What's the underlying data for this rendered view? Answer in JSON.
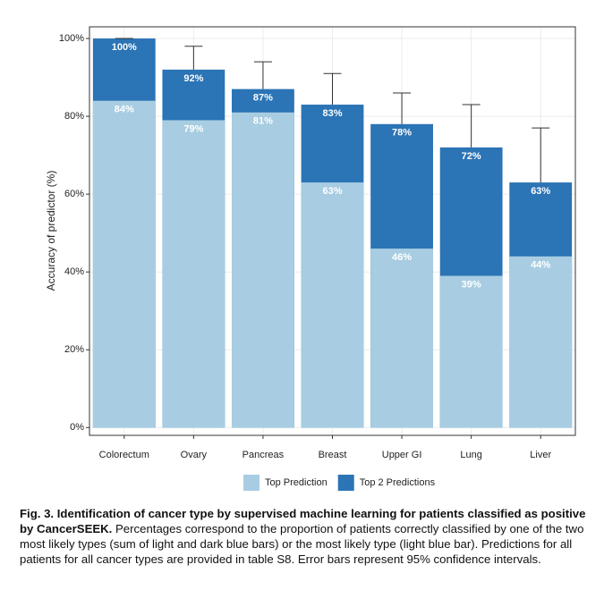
{
  "chart_data": {
    "type": "bar",
    "overlap": true,
    "ylabel": "Accuracy of predictor (%)",
    "categories": [
      "Colorectum",
      "Ovary",
      "Pancreas",
      "Breast",
      "Upper GI",
      "Lung",
      "Liver"
    ],
    "series": [
      {
        "name": "Top 2 Predictions",
        "color": "#2b74b5",
        "values": [
          100,
          92,
          87,
          83,
          78,
          72,
          63
        ],
        "value_labels": [
          "100%",
          "92%",
          "87%",
          "83%",
          "78%",
          "72%",
          "63%"
        ],
        "errors": [
          0,
          6,
          7,
          8,
          8,
          11,
          14
        ]
      },
      {
        "name": "Top Prediction",
        "color": "#a8cde2",
        "values": [
          84,
          79,
          81,
          63,
          46,
          39,
          44
        ],
        "value_labels": [
          "84%",
          "79%",
          "81%",
          "63%",
          "46%",
          "39%",
          "44%"
        ]
      }
    ],
    "legend_order": [
      1,
      0
    ],
    "legend": "bottom",
    "ylim": [
      -2,
      103
    ],
    "yticks": [
      {
        "value": 0,
        "label": "0%"
      },
      {
        "value": 20,
        "label": "20%"
      },
      {
        "value": 40,
        "label": "40%"
      },
      {
        "value": 60,
        "label": "60%"
      },
      {
        "value": 80,
        "label": "80%"
      },
      {
        "value": 100,
        "label": "100%"
      }
    ],
    "grid": true
  },
  "caption": {
    "bold": "Fig. 3. Identification of cancer type by supervised machine learning for patients classified as positive by CancerSEEK.",
    "text": " Percentages correspond to the proportion of patients correctly classified by one of the two most likely types (sum of light and dark blue bars) or the most likely type (light blue bar). Predictions for all patients for all cancer types are provided in table S8. Error bars represent 95% confidence intervals."
  }
}
